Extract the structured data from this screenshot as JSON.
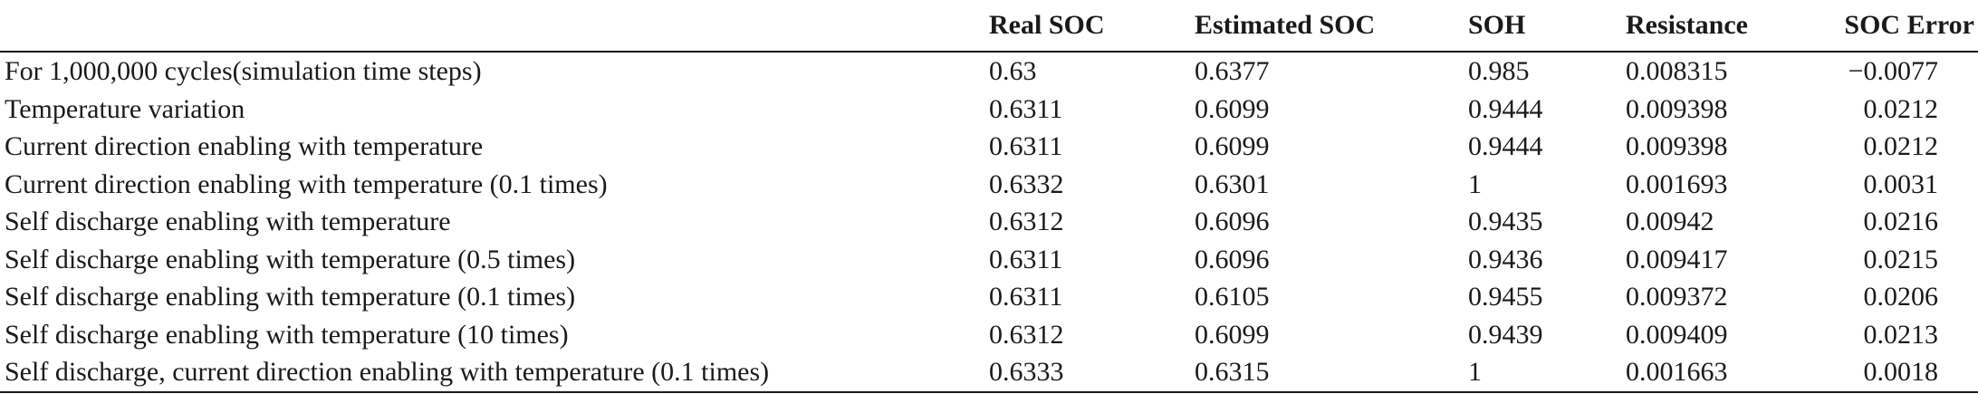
{
  "table": {
    "headers": [
      "",
      "Real SOC",
      "Estimated SOC",
      "SOH",
      "Resistance",
      "SOC Error"
    ],
    "rows": [
      [
        "For 1,000,000 cycles(simulation time steps)",
        "0.63",
        "0.6377",
        "0.985",
        "0.008315",
        "−0.0077"
      ],
      [
        "Temperature variation",
        "0.6311",
        "0.6099",
        "0.9444",
        "0.009398",
        "0.0212"
      ],
      [
        "Current direction enabling with temperature",
        "0.6311",
        "0.6099",
        "0.9444",
        "0.009398",
        "0.0212"
      ],
      [
        "Current direction enabling with temperature (0.1 times)",
        "0.6332",
        "0.6301",
        "1",
        "0.001693",
        "0.0031"
      ],
      [
        "Self discharge enabling with temperature",
        "0.6312",
        "0.6096",
        "0.9435",
        "0.00942",
        "0.0216"
      ],
      [
        "Self discharge enabling with temperature (0.5 times)",
        "0.6311",
        "0.6096",
        "0.9436",
        "0.009417",
        "0.0215"
      ],
      [
        "Self discharge enabling with temperature (0.1 times)",
        "0.6311",
        "0.6105",
        "0.9455",
        "0.009372",
        "0.0206"
      ],
      [
        "Self discharge enabling with temperature (10 times)",
        "0.6312",
        "0.6099",
        "0.9439",
        "0.009409",
        "0.0213"
      ],
      [
        "Self discharge, current direction enabling with temperature (0.1 times)",
        "0.6333",
        "0.6315",
        "1",
        "0.001663",
        "0.0018"
      ]
    ]
  }
}
